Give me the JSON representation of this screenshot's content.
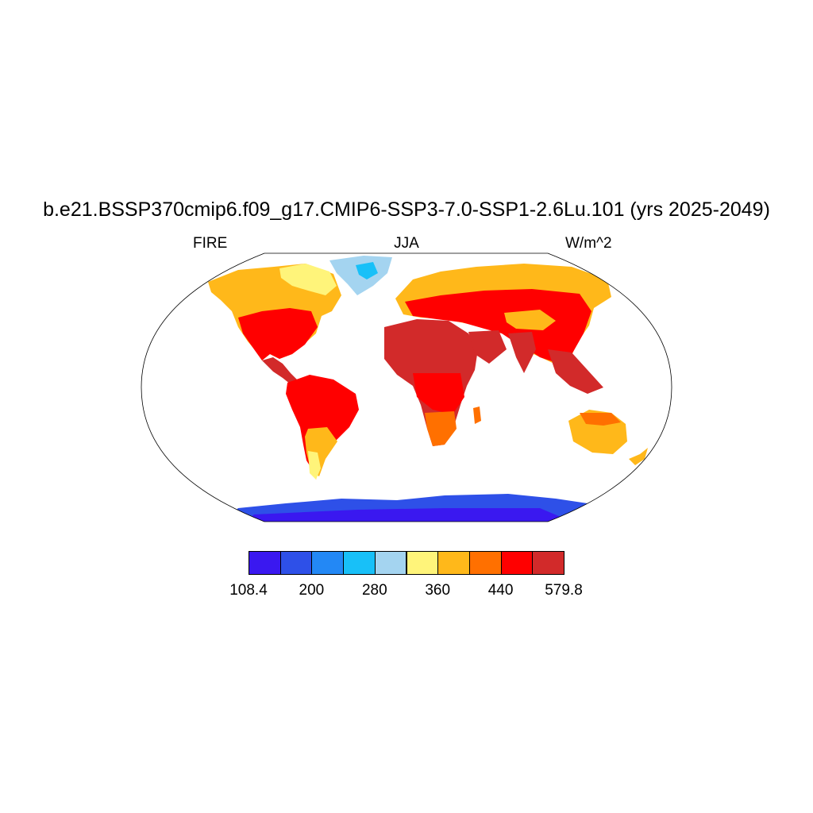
{
  "title": "b.e21.BSSP370cmip6.f09_g17.CMIP6-SSP3-7.0-SSP1-2.6Lu.101 (yrs 2025-2049)",
  "left_label": "FIRE",
  "center_label": "JJA",
  "right_label": "W/m^2",
  "colorbar": {
    "colors": [
      "#3a18f0",
      "#2e50e8",
      "#2388f5",
      "#18c0f8",
      "#a4d4f0",
      "#fff47a",
      "#ffb81a",
      "#ff7000",
      "#ff0000",
      "#d22a2a"
    ],
    "labels": [
      "108.4",
      "200",
      "280",
      "360",
      "440",
      "579.8"
    ]
  }
}
